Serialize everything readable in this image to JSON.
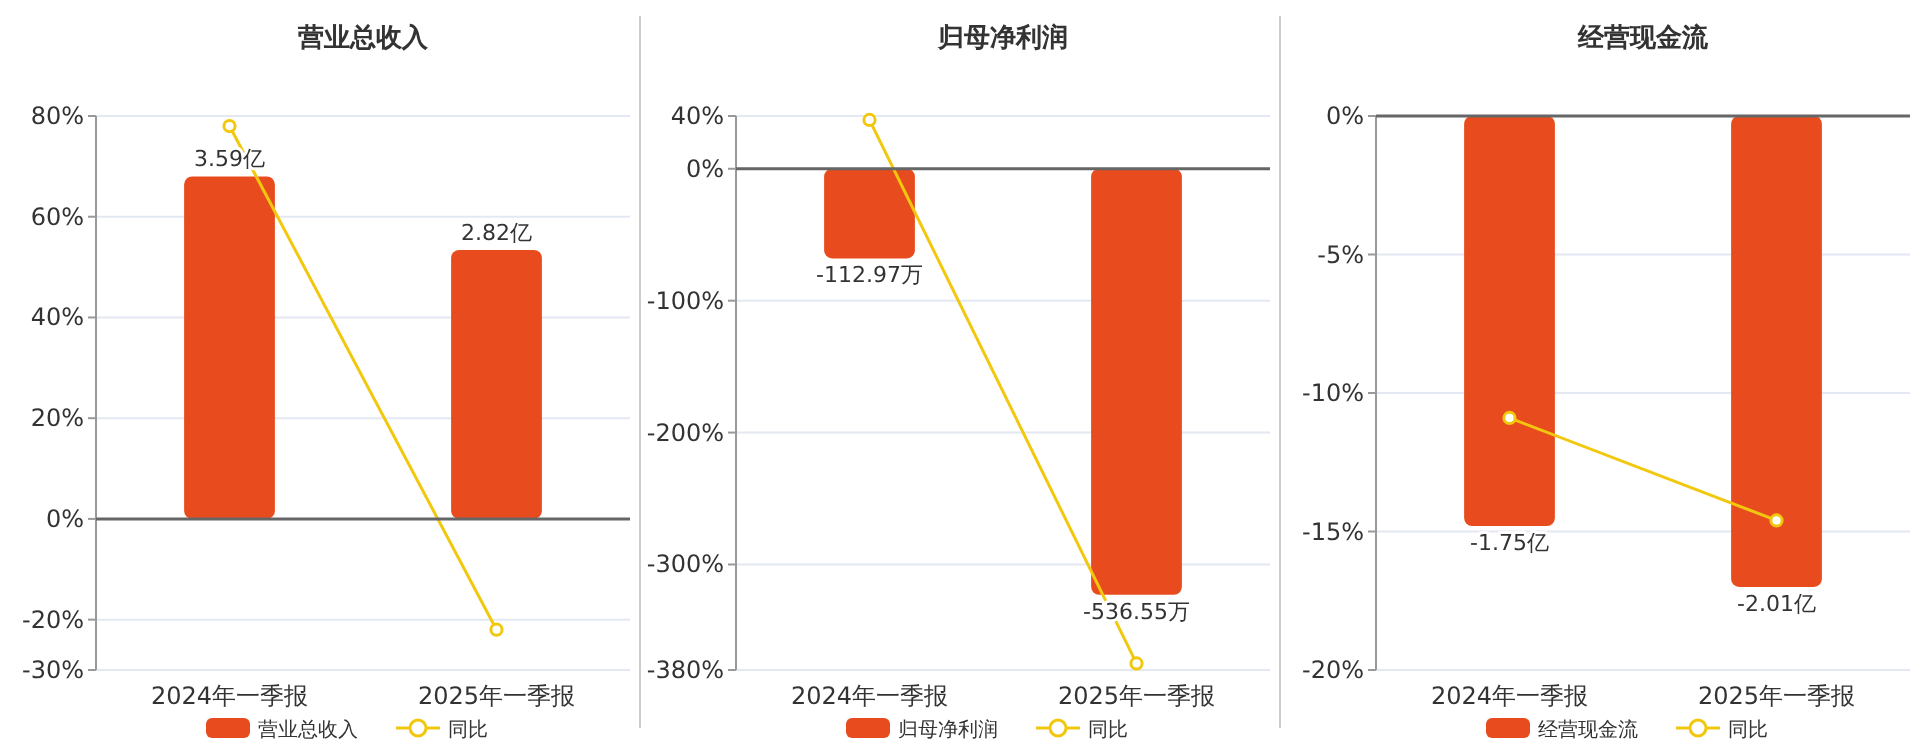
{
  "chart_data": [
    {
      "type": "bar",
      "title": "营业总收入",
      "categories": [
        "2024年一季报",
        "2025年一季报"
      ],
      "ylim": [
        -30,
        80
      ],
      "yticks": [
        {
          "value": 80,
          "label": "80%"
        },
        {
          "value": 60,
          "label": "60%"
        },
        {
          "value": 40,
          "label": "40%"
        },
        {
          "value": 20,
          "label": "20%"
        },
        {
          "value": 0,
          "label": "0%"
        },
        {
          "value": -20,
          "label": "-20%"
        },
        {
          "value": -30,
          "label": "-30%"
        }
      ],
      "grid": "y",
      "legend": "bottom",
      "tick_labels": "xy",
      "marker": "circle",
      "series": [
        {
          "name": "营业总收入",
          "axis": "y2",
          "color": "#e84c1e",
          "values": [
            3.59,
            2.82
          ],
          "value_labels": [
            "3.59亿",
            "2.82亿"
          ]
        },
        {
          "name": "同比",
          "type": "line",
          "color": "#f2c80f",
          "values": [
            78,
            -22
          ]
        }
      ]
    },
    {
      "type": "bar",
      "title": "归母净利润",
      "categories": [
        "2024年一季报",
        "2025年一季报"
      ],
      "ylim": [
        -380,
        40
      ],
      "yticks": [
        {
          "value": 40,
          "label": "40%"
        },
        {
          "value": 0,
          "label": "0%"
        },
        {
          "value": -100,
          "label": "-100%"
        },
        {
          "value": -200,
          "label": "-200%"
        },
        {
          "value": -300,
          "label": "-300%"
        },
        {
          "value": -380,
          "label": "-380%"
        }
      ],
      "grid": "y",
      "legend": "bottom",
      "tick_labels": "xy",
      "marker": "circle",
      "series": [
        {
          "name": "归母净利润",
          "axis": "y2",
          "color": "#e84c1e",
          "values": [
            -112.97,
            -536.55
          ],
          "value_labels": [
            "-112.97万",
            "-536.55万"
          ]
        },
        {
          "name": "同比",
          "type": "line",
          "color": "#f2c80f",
          "values": [
            37,
            -375
          ]
        }
      ]
    },
    {
      "type": "bar",
      "title": "经营现金流",
      "categories": [
        "2024年一季报",
        "2025年一季报"
      ],
      "ylim": [
        -20,
        0
      ],
      "yticks": [
        {
          "value": 0,
          "label": "0%"
        },
        {
          "value": -5,
          "label": "-5%"
        },
        {
          "value": -10,
          "label": "-10%"
        },
        {
          "value": -15,
          "label": "-15%"
        },
        {
          "value": -20,
          "label": "-20%"
        }
      ],
      "grid": "y",
      "legend": "bottom",
      "tick_labels": "xy",
      "marker": "circle",
      "series": [
        {
          "name": "经营现金流",
          "axis": "y2",
          "color": "#e84c1e",
          "values": [
            -1.75,
            -2.01
          ],
          "value_labels": [
            "-1.75亿",
            "-2.01亿"
          ]
        },
        {
          "name": "同比",
          "type": "line",
          "color": "#f2c80f",
          "values": [
            -10.9,
            -14.6
          ]
        }
      ]
    }
  ]
}
